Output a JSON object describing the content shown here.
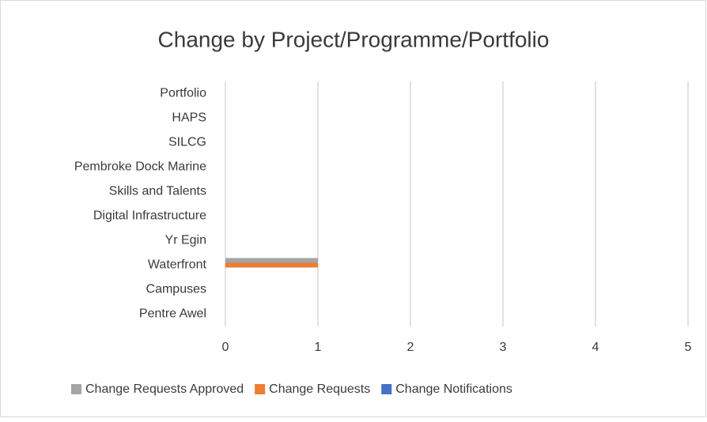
{
  "chart_data": {
    "type": "bar",
    "orientation": "horizontal",
    "title": "Change by Project/Programme/Portfolio",
    "categories": [
      "Pentre Awel",
      "Campuses",
      "Waterfront",
      "Yr Egin",
      "Digital Infrastructure",
      "Skills and Talents",
      "Pembroke Dock Marine",
      "SILCG",
      "HAPS",
      "Portfolio"
    ],
    "series": [
      {
        "name": "Change Requests Approved",
        "color": "#a5a5a5",
        "values": [
          0,
          0,
          1,
          0,
          0,
          0,
          0,
          0,
          0,
          0
        ]
      },
      {
        "name": "Change Requests",
        "color": "#ed7d31",
        "values": [
          0,
          0,
          1,
          0,
          0,
          0,
          0,
          0,
          0,
          0
        ]
      },
      {
        "name": "Change Notifications",
        "color": "#4472c4",
        "values": [
          0,
          0,
          0,
          0,
          0,
          0,
          0,
          0,
          0,
          0
        ]
      }
    ],
    "xlim": [
      0,
      5
    ],
    "xticks": [
      0,
      1,
      2,
      3,
      4,
      5
    ],
    "grid": true,
    "legend": "bottom"
  }
}
